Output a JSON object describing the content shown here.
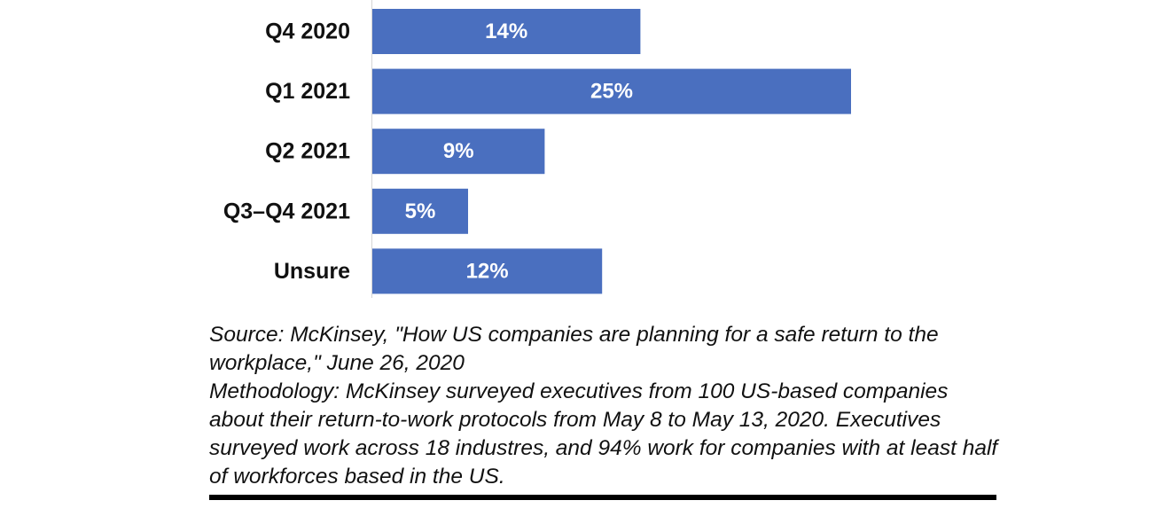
{
  "chart_data": {
    "type": "bar",
    "orientation": "horizontal",
    "categories": [
      "Q4 2020",
      "Q1 2021",
      "Q2 2021",
      "Q3–Q4 2021",
      "Unsure"
    ],
    "values": [
      14,
      25,
      9,
      5,
      12
    ],
    "value_labels": [
      "14%",
      "25%",
      "9%",
      "5%",
      "12%"
    ],
    "unit": "%",
    "xlim": [
      0,
      25
    ],
    "grid": false,
    "bar_color": "#4a6fbf"
  },
  "footnote": {
    "source": "Source: McKinsey, \"How US companies are planning for a safe return to the workplace,\" June 26, 2020",
    "methodology": "Methodology: McKinsey surveyed executives from 100 US-based companies about their return-to-work protocols from May 8 to May 13, 2020. Executives surveyed work across 18 industres, and 94% work for companies with at least half of workforces based in the US."
  }
}
